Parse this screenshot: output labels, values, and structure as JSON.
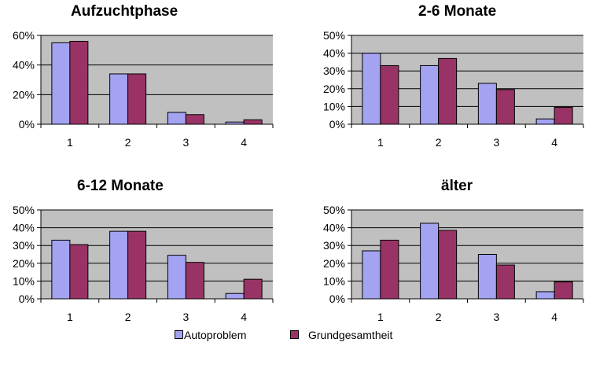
{
  "colors": {
    "autoproblem": "#a3a3f2",
    "grundgesamtheit": "#993366",
    "plot_bg": "#c0c0c0"
  },
  "legend": {
    "series_a": "Autoproblem",
    "series_b": "Grundgesamtheit"
  },
  "chart_data": [
    {
      "type": "bar",
      "title": "Aufzuchtphase",
      "categories": [
        "1",
        "2",
        "3",
        "4"
      ],
      "ylim": [
        0,
        60
      ],
      "yticks": [
        "60%",
        "40%",
        "20%",
        "0%"
      ],
      "series": [
        {
          "name": "Autoproblem",
          "values": [
            55,
            34,
            8,
            1.5
          ]
        },
        {
          "name": "Grundgesamtheit",
          "values": [
            56,
            34,
            6.5,
            3
          ]
        }
      ]
    },
    {
      "type": "bar",
      "title": "2-6 Monate",
      "categories": [
        "1",
        "2",
        "3",
        "4"
      ],
      "ylim": [
        0,
        50
      ],
      "yticks": [
        "50%",
        "40%",
        "30%",
        "20%",
        "10%",
        "0%"
      ],
      "series": [
        {
          "name": "Autoproblem",
          "values": [
            40,
            33,
            23,
            3
          ]
        },
        {
          "name": "Grundgesamtheit",
          "values": [
            33,
            37,
            19.5,
            9.5
          ]
        }
      ]
    },
    {
      "type": "bar",
      "title": "6-12 Monate",
      "categories": [
        "1",
        "2",
        "3",
        "4"
      ],
      "ylim": [
        0,
        50
      ],
      "yticks": [
        "50%",
        "40%",
        "30%",
        "20%",
        "10%",
        "0%"
      ],
      "series": [
        {
          "name": "Autoproblem",
          "values": [
            33,
            38,
            24.5,
            3
          ]
        },
        {
          "name": "Grundgesamtheit",
          "values": [
            30.5,
            38,
            20.5,
            11
          ]
        }
      ]
    },
    {
      "type": "bar",
      "title": "älter",
      "categories": [
        "1",
        "2",
        "3",
        "4"
      ],
      "ylim": [
        0,
        50
      ],
      "yticks": [
        "50%",
        "40%",
        "30%",
        "20%",
        "10%",
        "0%"
      ],
      "series": [
        {
          "name": "Autoproblem",
          "values": [
            27,
            42.5,
            25,
            4
          ]
        },
        {
          "name": "Grundgesamtheit",
          "values": [
            33,
            38.5,
            19,
            9.5
          ]
        }
      ]
    }
  ]
}
